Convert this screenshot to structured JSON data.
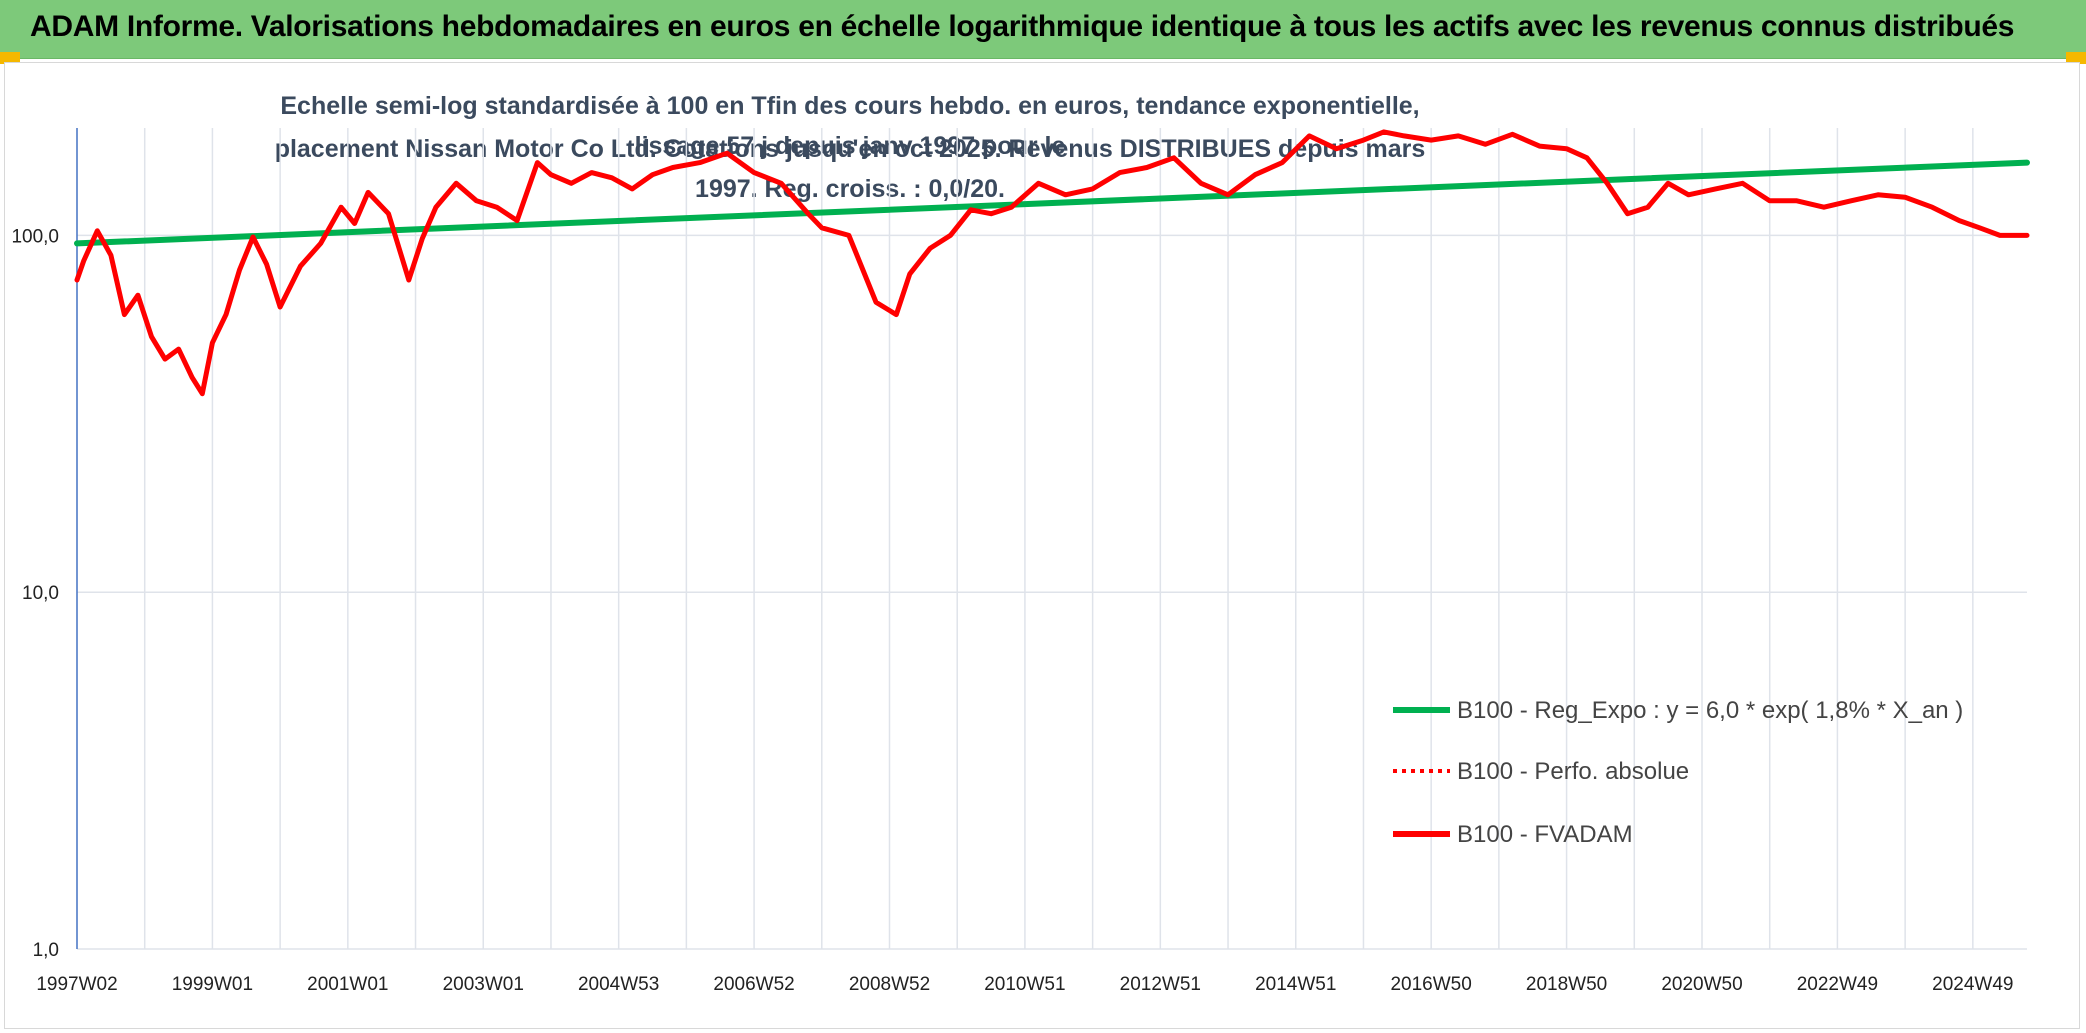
{
  "header": {
    "title": "ADAM Informe. Valorisations hebdomadaires en euros en échelle logarithmique identique à tous les actifs avec les revenus connus distribués"
  },
  "chart_data": {
    "type": "line",
    "title_line1": "Echelle semi-log standardisée à 100 en Tfin des cours hebdo. en euros, tendance exponentielle, lissage 57 j depuis janv 1997 pour le",
    "title_line2": "placement Nissan Motor Co Ltd. Cotations jusqu'en oct 2025. Revenus DISTRIBUES depuis mars 1997. Reg. croiss. : 0,0/20.",
    "y_scale": "log",
    "ylim": [
      1,
      200
    ],
    "y_ticks": [
      1,
      10,
      100
    ],
    "y_tick_labels": [
      "1,0",
      "10,0",
      "100,0"
    ],
    "xlim": [
      1997.0,
      2025.8
    ],
    "x_tick_labels": [
      "1997W02",
      "1999W01",
      "2001W01",
      "2003W01",
      "2004W53",
      "2006W52",
      "2008W52",
      "2010W51",
      "2012W51",
      "2014W51",
      "2016W50",
      "2018W50",
      "2020W50",
      "2022W49",
      "2024W49"
    ],
    "x_tick_years": [
      1997.0,
      1999.0,
      2001.0,
      2003.0,
      2005.0,
      2007.0,
      2009.0,
      2011.0,
      2013.0,
      2015.0,
      2017.0,
      2019.0,
      2021.0,
      2023.0,
      2025.0
    ],
    "grid": true,
    "legend_position": "bottom-right",
    "series": [
      {
        "name": "B100 - Reg_Expo : y = 6,0 * exp( 1,8% *  X_an )",
        "color": "#00b050",
        "style": "solid",
        "x": [
          1997.0,
          2025.8
        ],
        "y": [
          95,
          160
        ]
      },
      {
        "name": "B100 - Perfo. absolue",
        "color": "#ff0000",
        "style": "dotted",
        "x": [],
        "y": []
      },
      {
        "name": "B100 - FVADAM",
        "color": "#ff0000",
        "style": "solid",
        "x": [
          1997.0,
          1997.1,
          1997.3,
          1997.5,
          1997.7,
          1997.9,
          1998.1,
          1998.3,
          1998.5,
          1998.7,
          1998.85,
          1999.0,
          1999.2,
          1999.4,
          1999.6,
          1999.8,
          2000.0,
          2000.3,
          2000.6,
          2000.9,
          2001.1,
          2001.3,
          2001.6,
          2001.9,
          2002.1,
          2002.3,
          2002.6,
          2002.9,
          2003.2,
          2003.5,
          2003.8,
          2004.0,
          2004.3,
          2004.6,
          2004.9,
          2005.2,
          2005.5,
          2005.8,
          2006.2,
          2006.6,
          2007.0,
          2007.4,
          2007.8,
          2008.0,
          2008.4,
          2008.8,
          2009.1,
          2009.3,
          2009.6,
          2009.9,
          2010.2,
          2010.5,
          2010.8,
          2011.2,
          2011.6,
          2012.0,
          2012.4,
          2012.8,
          2013.2,
          2013.6,
          2014.0,
          2014.4,
          2014.8,
          2015.2,
          2015.6,
          2016.0,
          2016.3,
          2016.6,
          2017.0,
          2017.4,
          2017.8,
          2018.2,
          2018.6,
          2019.0,
          2019.3,
          2019.6,
          2019.9,
          2020.2,
          2020.5,
          2020.8,
          2021.2,
          2021.6,
          2022.0,
          2022.4,
          2022.8,
          2023.2,
          2023.6,
          2024.0,
          2024.4,
          2024.8,
          2025.1,
          2025.4,
          2025.8
        ],
        "y": [
          75,
          85,
          103,
          88,
          60,
          68,
          52,
          45,
          48,
          40,
          36,
          50,
          60,
          80,
          99,
          83,
          63,
          82,
          95,
          120,
          108,
          132,
          115,
          75,
          98,
          120,
          140,
          125,
          120,
          110,
          160,
          148,
          140,
          150,
          145,
          135,
          148,
          155,
          160,
          170,
          150,
          140,
          115,
          105,
          100,
          65,
          60,
          78,
          92,
          100,
          118,
          115,
          120,
          140,
          130,
          135,
          150,
          155,
          165,
          140,
          130,
          148,
          160,
          190,
          175,
          185,
          195,
          190,
          185,
          190,
          180,
          192,
          178,
          175,
          165,
          140,
          115,
          120,
          140,
          130,
          135,
          140,
          125,
          125,
          120,
          125,
          130,
          128,
          120,
          110,
          105,
          100,
          100
        ]
      }
    ]
  }
}
